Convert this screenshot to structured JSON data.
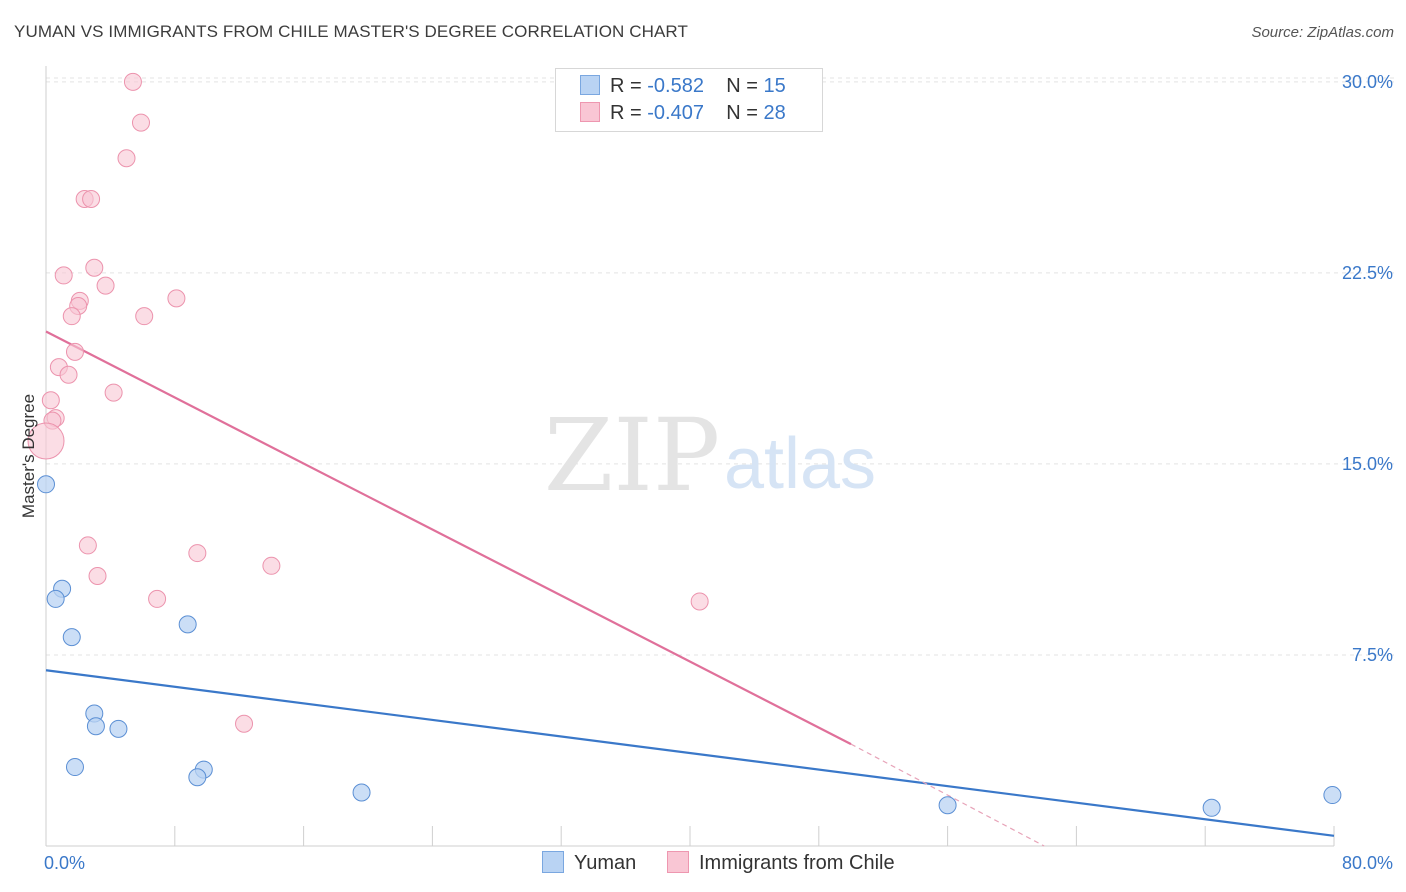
{
  "title": "YUMAN VS IMMIGRANTS FROM CHILE MASTER'S DEGREE CORRELATION CHART",
  "source": "Source: ZipAtlas.com",
  "watermark": {
    "zip": "ZIP",
    "atlas": "atlas"
  },
  "legend": {
    "r_label": "R =",
    "n_label": "N =",
    "rows": [
      {
        "name": "Yuman",
        "r": "-0.582",
        "n": "15",
        "fill": "#b9d3f3",
        "stroke": "#7aa7e0"
      },
      {
        "name": "Immigrants from Chile",
        "r": "-0.407",
        "n": "28",
        "fill": "#f9c6d4",
        "stroke": "#ee97b0"
      }
    ]
  },
  "chart_data": {
    "type": "scatter",
    "title": "YUMAN VS IMMIGRANTS FROM CHILE MASTER'S DEGREE CORRELATION CHART",
    "xlabel": "",
    "ylabel": "Master's Degree",
    "xlim": [
      0,
      80
    ],
    "ylim": [
      0,
      30.7
    ],
    "x_tick_labels": [
      "0.0%",
      "80.0%"
    ],
    "y_ticks": [
      7.5,
      15.0,
      22.5,
      30.0
    ],
    "y_tick_labels": [
      "7.5%",
      "15.0%",
      "22.5%",
      "30.0%"
    ],
    "grid": true,
    "series": [
      {
        "name": "Yuman",
        "color": "#3a78c9",
        "fill": "#b9d3f3",
        "points": [
          {
            "x": 0.0,
            "y": 14.2
          },
          {
            "x": 1.0,
            "y": 10.1
          },
          {
            "x": 0.6,
            "y": 9.7
          },
          {
            "x": 1.6,
            "y": 8.2
          },
          {
            "x": 8.8,
            "y": 8.7
          },
          {
            "x": 3.0,
            "y": 5.2
          },
          {
            "x": 3.1,
            "y": 4.7
          },
          {
            "x": 4.5,
            "y": 4.6
          },
          {
            "x": 1.8,
            "y": 3.1
          },
          {
            "x": 9.8,
            "y": 3.0
          },
          {
            "x": 9.4,
            "y": 2.7
          },
          {
            "x": 19.6,
            "y": 2.1
          },
          {
            "x": 56.0,
            "y": 1.6
          },
          {
            "x": 72.4,
            "y": 1.5
          },
          {
            "x": 79.9,
            "y": 2.0
          }
        ],
        "trend": {
          "x0": 0.0,
          "y0": 6.9,
          "x1": 80.0,
          "y1": 0.4
        }
      },
      {
        "name": "Immigrants from Chile",
        "color": "#e0709a",
        "fill": "#f9c6d4",
        "points": [
          {
            "x": 5.4,
            "y": 30.0
          },
          {
            "x": 5.9,
            "y": 28.4
          },
          {
            "x": 5.0,
            "y": 27.0
          },
          {
            "x": 2.4,
            "y": 25.4
          },
          {
            "x": 2.8,
            "y": 25.4
          },
          {
            "x": 1.1,
            "y": 22.4
          },
          {
            "x": 3.0,
            "y": 22.7
          },
          {
            "x": 3.7,
            "y": 22.0
          },
          {
            "x": 8.1,
            "y": 21.5
          },
          {
            "x": 2.1,
            "y": 21.4
          },
          {
            "x": 2.0,
            "y": 21.2
          },
          {
            "x": 1.6,
            "y": 20.8
          },
          {
            "x": 6.1,
            "y": 20.8
          },
          {
            "x": 1.8,
            "y": 19.4
          },
          {
            "x": 0.8,
            "y": 18.8
          },
          {
            "x": 1.4,
            "y": 18.5
          },
          {
            "x": 4.2,
            "y": 17.8
          },
          {
            "x": 0.3,
            "y": 17.5
          },
          {
            "x": 0.6,
            "y": 16.8
          },
          {
            "x": 0.4,
            "y": 16.7
          },
          {
            "x": 0.0,
            "y": 15.9
          },
          {
            "x": 2.6,
            "y": 11.8
          },
          {
            "x": 9.4,
            "y": 11.5
          },
          {
            "x": 3.2,
            "y": 10.6
          },
          {
            "x": 14.0,
            "y": 11.0
          },
          {
            "x": 6.9,
            "y": 9.7
          },
          {
            "x": 40.6,
            "y": 9.6
          },
          {
            "x": 12.3,
            "y": 4.8
          }
        ],
        "trend": {
          "x0": 0.0,
          "y0": 20.2,
          "x1": 50.0,
          "y1": 4.0
        },
        "trend_extension": {
          "x0": 50.0,
          "y0": 4.0,
          "x1": 62.0,
          "y1": 0.0
        }
      }
    ]
  }
}
